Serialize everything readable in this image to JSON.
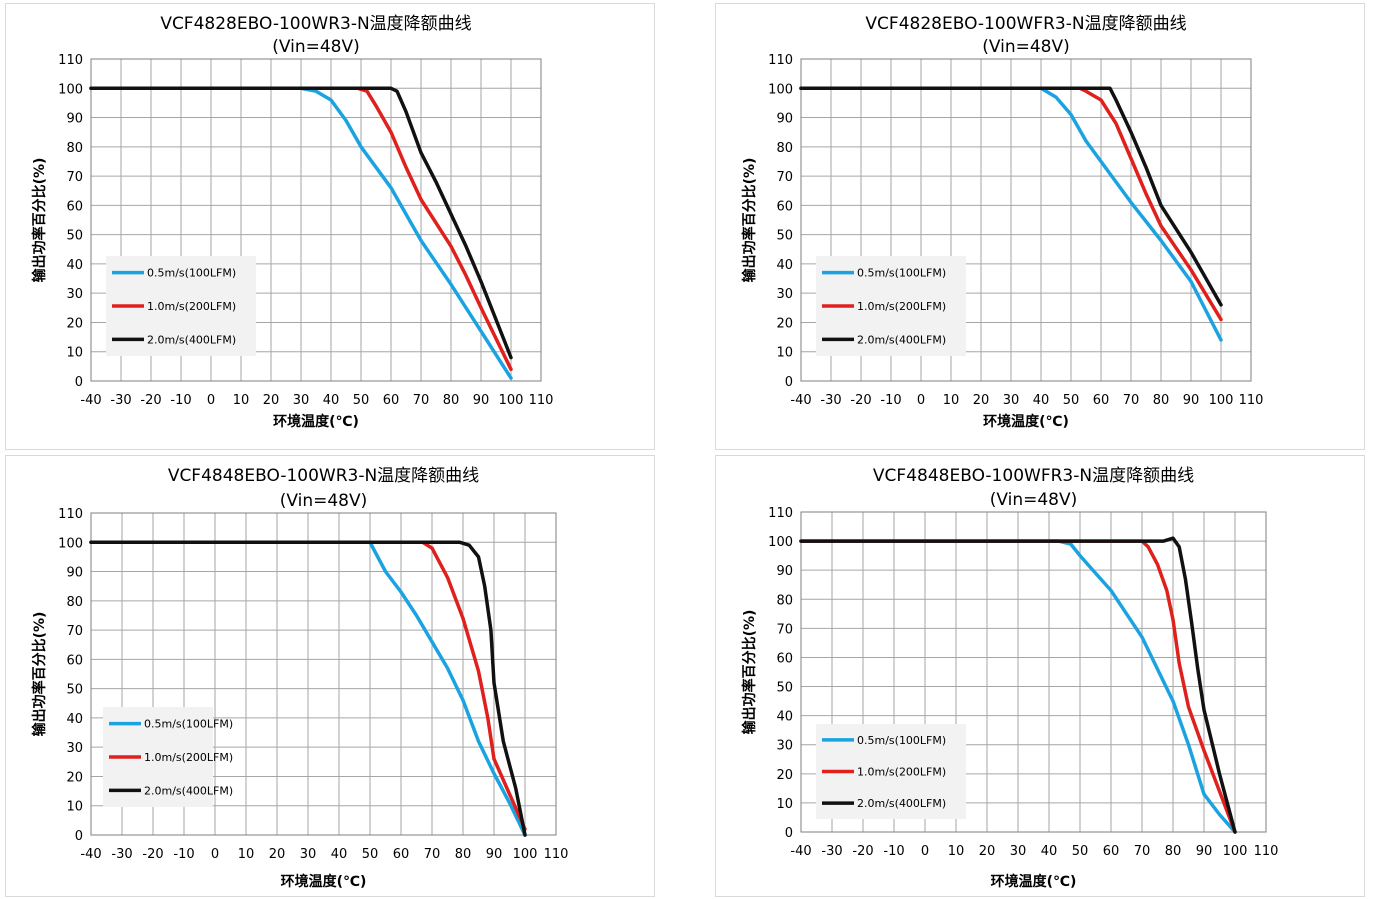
{
  "chart_data": [
    {
      "type": "line",
      "title": "VCF4828EBO-100WR3-N温度降额曲线",
      "subtitle": "(Vin=48V)",
      "xlabel": "环境温度(℃)",
      "ylabel": "输出功率百分比(%)",
      "xlim": [
        -40,
        110
      ],
      "ylim": [
        0,
        110
      ],
      "xticks": [
        "-40",
        "-30",
        "-20",
        "-10",
        "0",
        "10",
        "20",
        "30",
        "40",
        "50",
        "60",
        "70",
        "80",
        "90",
        "100",
        "110"
      ],
      "yticks": [
        "0",
        "10",
        "20",
        "30",
        "40",
        "50",
        "60",
        "70",
        "80",
        "90",
        "100",
        "110"
      ],
      "grid": true,
      "legend_position": "bottom-left",
      "series": [
        {
          "name": "0.5m/s(100LFM)",
          "color": "#1aa3e0",
          "x": [
            -40,
            30,
            35,
            40,
            45,
            50,
            60,
            70,
            80,
            90,
            100
          ],
          "y": [
            100,
            100,
            99,
            96,
            89,
            80,
            66,
            48,
            33,
            17,
            1
          ]
        },
        {
          "name": "1.0m/s(200LFM)",
          "color": "#e0201c",
          "x": [
            -40,
            49,
            52,
            55,
            60,
            65,
            70,
            80,
            85,
            90,
            100
          ],
          "y": [
            100,
            100,
            99,
            94,
            85,
            73,
            62,
            46,
            36,
            25,
            4
          ]
        },
        {
          "name": "2.0m/s(400LFM)",
          "color": "#111111",
          "x": [
            -40,
            57,
            60,
            62,
            65,
            70,
            75,
            80,
            85,
            90,
            100
          ],
          "y": [
            100,
            100,
            100,
            99,
            92,
            78,
            68,
            57,
            46,
            34,
            8
          ]
        }
      ]
    },
    {
      "type": "line",
      "title": "VCF4828EBO-100WFR3-N温度降额曲线",
      "subtitle": "(Vin=48V)",
      "xlabel": "环境温度(℃)",
      "ylabel": "输出功率百分比(%)",
      "xlim": [
        -40,
        110
      ],
      "ylim": [
        0,
        110
      ],
      "xticks": [
        "-40",
        "-30",
        "-20",
        "-10",
        "0",
        "10",
        "20",
        "30",
        "40",
        "50",
        "60",
        "70",
        "80",
        "90",
        "100",
        "110"
      ],
      "yticks": [
        "0",
        "10",
        "20",
        "30",
        "40",
        "50",
        "60",
        "70",
        "80",
        "90",
        "100",
        "110"
      ],
      "grid": true,
      "legend_position": "bottom-left",
      "series": [
        {
          "name": "0.5m/s(100LFM)",
          "color": "#1aa3e0",
          "x": [
            -40,
            40,
            45,
            50,
            55,
            60,
            70,
            80,
            90,
            100
          ],
          "y": [
            100,
            100,
            97,
            91,
            82,
            75,
            61,
            48,
            34,
            14
          ]
        },
        {
          "name": "1.0m/s(200LFM)",
          "color": "#e0201c",
          "x": [
            -40,
            53,
            55,
            60,
            65,
            70,
            75,
            80,
            90,
            100
          ],
          "y": [
            100,
            100,
            99,
            96,
            88,
            76,
            64,
            53,
            38,
            21
          ]
        },
        {
          "name": "2.0m/s(400LFM)",
          "color": "#111111",
          "x": [
            -40,
            60,
            63,
            65,
            70,
            75,
            80,
            90,
            100
          ],
          "y": [
            100,
            100,
            100,
            96,
            85,
            73,
            60,
            44,
            26
          ]
        }
      ]
    },
    {
      "type": "line",
      "title": "VCF4848EBO-100WR3-N温度降额曲线",
      "subtitle": "(Vin=48V)",
      "xlabel": "环境温度(℃)",
      "ylabel": "输出功率百分比(%)",
      "xlim": [
        -40,
        110
      ],
      "ylim": [
        0,
        110
      ],
      "xticks": [
        "-40",
        "-30",
        "-20",
        "-10",
        "0",
        "10",
        "20",
        "30",
        "40",
        "50",
        "60",
        "70",
        "80",
        "90",
        "100",
        "110"
      ],
      "yticks": [
        "0",
        "10",
        "20",
        "30",
        "40",
        "50",
        "60",
        "70",
        "80",
        "90",
        "100",
        "110"
      ],
      "grid": true,
      "legend_position": "bottom-left",
      "series": [
        {
          "name": "0.5m/s(100LFM)",
          "color": "#1aa3e0",
          "x": [
            -40,
            50,
            52,
            55,
            60,
            65,
            70,
            75,
            80,
            85,
            90,
            95,
            100
          ],
          "y": [
            100,
            100,
            96,
            90,
            83,
            75,
            66,
            57,
            46,
            32,
            21,
            11,
            0
          ]
        },
        {
          "name": "1.0m/s(200LFM)",
          "color": "#e0201c",
          "x": [
            -40,
            64,
            67,
            70,
            75,
            80,
            85,
            88,
            90,
            95,
            100
          ],
          "y": [
            100,
            100,
            100,
            98,
            88,
            74,
            56,
            40,
            26,
            14,
            2
          ]
        },
        {
          "name": "2.0m/s(400LFM)",
          "color": "#111111",
          "x": [
            -40,
            76,
            79,
            82,
            85,
            87,
            89,
            90,
            93,
            97,
            100
          ],
          "y": [
            100,
            100,
            100,
            99,
            95,
            85,
            70,
            52,
            32,
            16,
            0
          ]
        }
      ]
    },
    {
      "type": "line",
      "title": "VCF4848EBO-100WFR3-N温度降额曲线",
      "subtitle": "(Vin=48V)",
      "xlabel": "环境温度(℃)",
      "ylabel": "输出功率百分比(%)",
      "xlim": [
        -40,
        110
      ],
      "ylim": [
        0,
        110
      ],
      "xticks": [
        "-40",
        "-30",
        "-20",
        "-10",
        "0",
        "10",
        "20",
        "30",
        "40",
        "50",
        "60",
        "70",
        "80",
        "90",
        "100",
        "110"
      ],
      "yticks": [
        "0",
        "10",
        "20",
        "30",
        "40",
        "50",
        "60",
        "70",
        "80",
        "90",
        "100",
        "110"
      ],
      "grid": true,
      "legend_position": "bottom-left",
      "series": [
        {
          "name": "0.5m/s(100LFM)",
          "color": "#1aa3e0",
          "x": [
            -40,
            43,
            47,
            50,
            55,
            60,
            65,
            70,
            75,
            80,
            85,
            90,
            95,
            100
          ],
          "y": [
            100,
            100,
            99,
            95,
            89,
            83,
            75,
            67,
            56,
            45,
            30,
            13,
            6,
            0
          ]
        },
        {
          "name": "1.0m/s(200LFM)",
          "color": "#e0201c",
          "x": [
            -40,
            70,
            72,
            75,
            78,
            80,
            82,
            85,
            90,
            95,
            100
          ],
          "y": [
            100,
            100,
            98,
            92,
            83,
            73,
            58,
            43,
            28,
            14,
            0
          ]
        },
        {
          "name": "2.0m/s(400LFM)",
          "color": "#111111",
          "x": [
            -40,
            77,
            80,
            82,
            84,
            86,
            88,
            90,
            95,
            100
          ],
          "y": [
            100,
            100,
            101,
            98,
            87,
            72,
            56,
            42,
            20,
            0
          ]
        }
      ]
    }
  ]
}
